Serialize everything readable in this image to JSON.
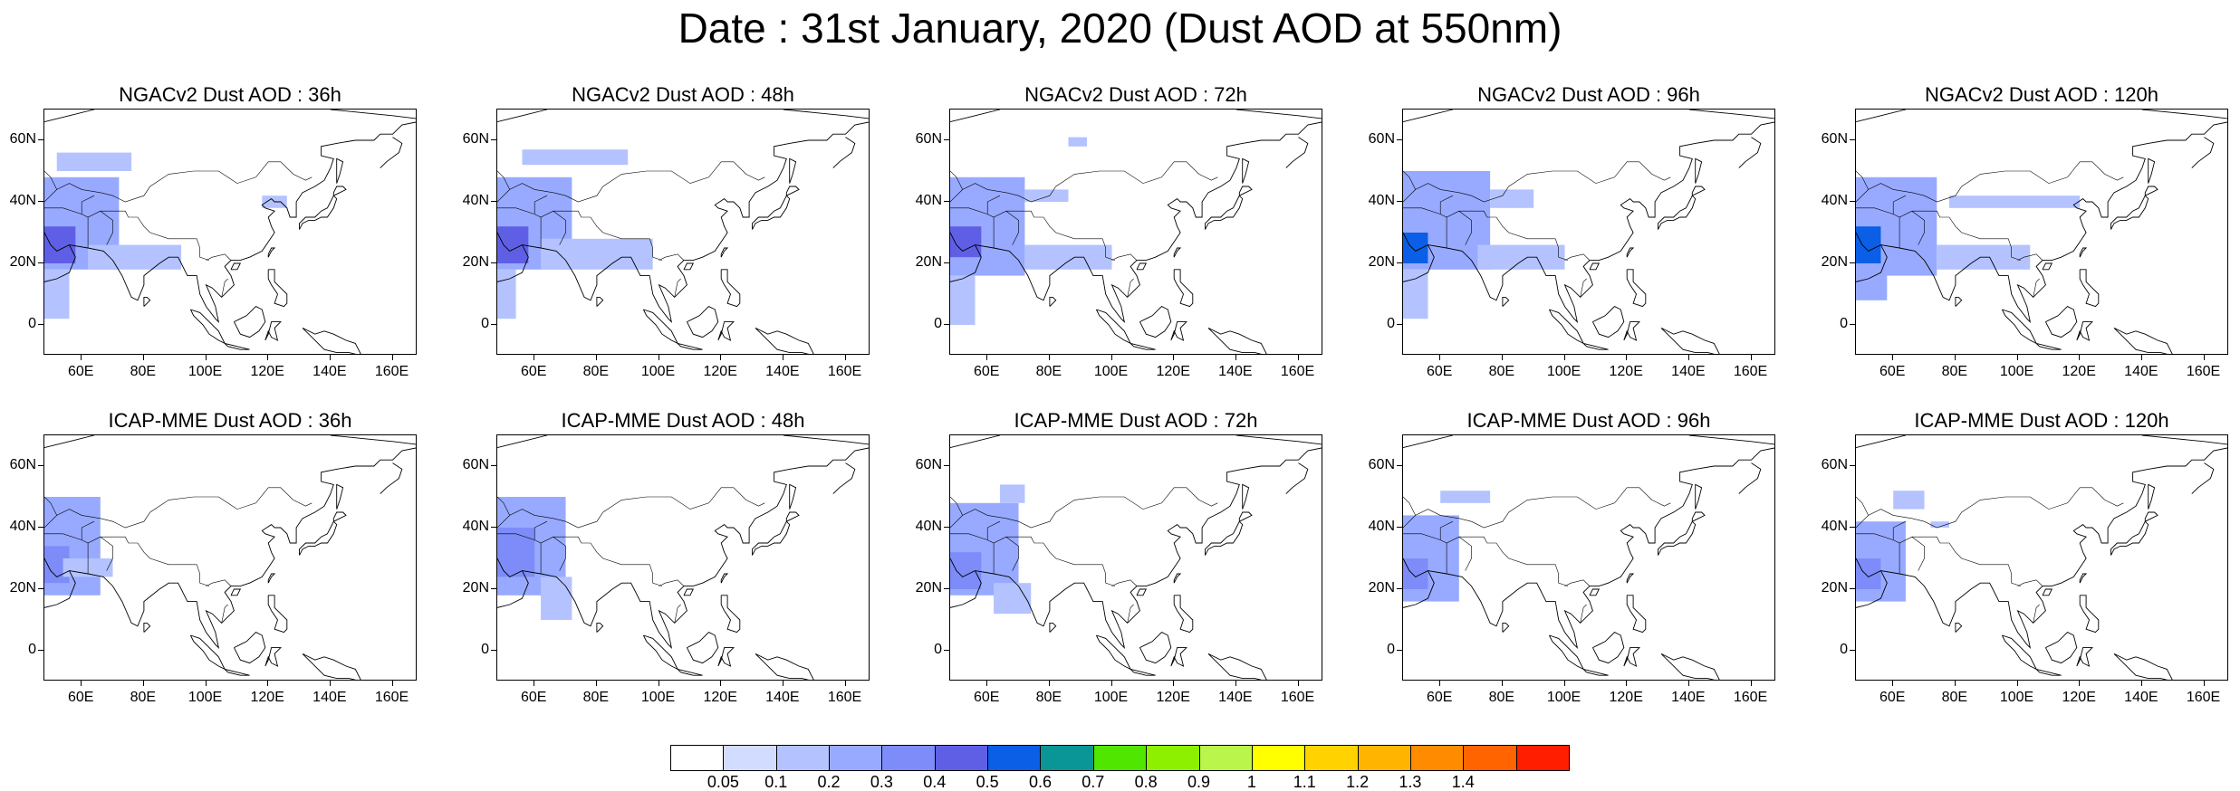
{
  "title": "Date : 31st January, 2020 (Dust AOD at 550nm)",
  "map": {
    "lon_range": [
      48,
      168
    ],
    "lat_range": [
      -10,
      70
    ],
    "x_ticks": [
      "60E",
      "80E",
      "100E",
      "120E",
      "140E",
      "160E"
    ],
    "x_tick_values": [
      60,
      80,
      100,
      120,
      140,
      160
    ],
    "y_ticks": [
      "0",
      "20N",
      "40N",
      "60N"
    ],
    "y_tick_values": [
      0,
      20,
      40,
      60
    ]
  },
  "panels": [
    {
      "title": "NGACv2 Dust AOD : 36h",
      "model": "NGACv2",
      "lead": "36h",
      "dust": [
        {
          "lon": [
            48,
            72
          ],
          "lat": [
            18,
            48
          ],
          "aod": 0.2
        },
        {
          "lon": [
            48,
            58
          ],
          "lat": [
            20,
            32
          ],
          "aod": 0.4
        },
        {
          "lon": [
            52,
            76
          ],
          "lat": [
            50,
            56
          ],
          "aod": 0.1
        },
        {
          "lon": [
            62,
            92
          ],
          "lat": [
            18,
            26
          ],
          "aod": 0.1
        },
        {
          "lon": [
            48,
            56
          ],
          "lat": [
            2,
            18
          ],
          "aod": 0.1
        },
        {
          "lon": [
            118,
            126
          ],
          "lat": [
            38,
            42
          ],
          "aod": 0.1
        }
      ]
    },
    {
      "title": "NGACv2 Dust AOD : 48h",
      "model": "NGACv2",
      "lead": "48h",
      "dust": [
        {
          "lon": [
            48,
            72
          ],
          "lat": [
            18,
            48
          ],
          "aod": 0.2
        },
        {
          "lon": [
            48,
            58
          ],
          "lat": [
            20,
            32
          ],
          "aod": 0.4
        },
        {
          "lon": [
            56,
            90
          ],
          "lat": [
            52,
            57
          ],
          "aod": 0.1
        },
        {
          "lon": [
            62,
            98
          ],
          "lat": [
            18,
            28
          ],
          "aod": 0.1
        },
        {
          "lon": [
            48,
            54
          ],
          "lat": [
            2,
            18
          ],
          "aod": 0.1
        }
      ]
    },
    {
      "title": "NGACv2 Dust AOD : 72h",
      "model": "NGACv2",
      "lead": "72h",
      "dust": [
        {
          "lon": [
            48,
            72
          ],
          "lat": [
            16,
            48
          ],
          "aod": 0.2
        },
        {
          "lon": [
            48,
            58
          ],
          "lat": [
            22,
            32
          ],
          "aod": 0.4
        },
        {
          "lon": [
            72,
            100
          ],
          "lat": [
            18,
            26
          ],
          "aod": 0.1
        },
        {
          "lon": [
            48,
            56
          ],
          "lat": [
            0,
            16
          ],
          "aod": 0.1
        },
        {
          "lon": [
            86,
            92
          ],
          "lat": [
            58,
            61
          ],
          "aod": 0.1
        },
        {
          "lon": [
            72,
            86
          ],
          "lat": [
            40,
            44
          ],
          "aod": 0.1
        }
      ]
    },
    {
      "title": "NGACv2 Dust AOD : 96h",
      "model": "NGACv2",
      "lead": "96h",
      "dust": [
        {
          "lon": [
            48,
            76
          ],
          "lat": [
            18,
            50
          ],
          "aod": 0.2
        },
        {
          "lon": [
            48,
            56
          ],
          "lat": [
            20,
            30
          ],
          "aod": 0.5
        },
        {
          "lon": [
            72,
            100
          ],
          "lat": [
            18,
            26
          ],
          "aod": 0.1
        },
        {
          "lon": [
            48,
            56
          ],
          "lat": [
            2,
            18
          ],
          "aod": 0.1
        },
        {
          "lon": [
            76,
            90
          ],
          "lat": [
            38,
            44
          ],
          "aod": 0.1
        }
      ]
    },
    {
      "title": "NGACv2 Dust AOD : 120h",
      "model": "NGACv2",
      "lead": "120h",
      "dust": [
        {
          "lon": [
            48,
            74
          ],
          "lat": [
            16,
            48
          ],
          "aod": 0.2
        },
        {
          "lon": [
            48,
            56
          ],
          "lat": [
            20,
            32
          ],
          "aod": 0.5
        },
        {
          "lon": [
            74,
            104
          ],
          "lat": [
            18,
            26
          ],
          "aod": 0.1
        },
        {
          "lon": [
            48,
            58
          ],
          "lat": [
            8,
            18
          ],
          "aod": 0.2
        },
        {
          "lon": [
            78,
            120
          ],
          "lat": [
            38,
            42
          ],
          "aod": 0.1
        }
      ]
    },
    {
      "title": "ICAP-MME Dust AOD : 36h",
      "model": "ICAP-MME",
      "lead": "36h",
      "dust": [
        {
          "lon": [
            48,
            66
          ],
          "lat": [
            18,
            50
          ],
          "aod": 0.2
        },
        {
          "lon": [
            48,
            56
          ],
          "lat": [
            22,
            34
          ],
          "aod": 0.3
        },
        {
          "lon": [
            54,
            70
          ],
          "lat": [
            24,
            30
          ],
          "aod": 0.1
        }
      ]
    },
    {
      "title": "ICAP-MME Dust AOD : 48h",
      "model": "ICAP-MME",
      "lead": "48h",
      "dust": [
        {
          "lon": [
            48,
            70
          ],
          "lat": [
            18,
            50
          ],
          "aod": 0.2
        },
        {
          "lon": [
            48,
            60
          ],
          "lat": [
            24,
            40
          ],
          "aod": 0.3
        },
        {
          "lon": [
            62,
            72
          ],
          "lat": [
            10,
            24
          ],
          "aod": 0.1
        }
      ]
    },
    {
      "title": "ICAP-MME Dust AOD : 72h",
      "model": "ICAP-MME",
      "lead": "72h",
      "dust": [
        {
          "lon": [
            48,
            70
          ],
          "lat": [
            18,
            48
          ],
          "aod": 0.2
        },
        {
          "lon": [
            48,
            58
          ],
          "lat": [
            20,
            32
          ],
          "aod": 0.3
        },
        {
          "lon": [
            64,
            72
          ],
          "lat": [
            48,
            54
          ],
          "aod": 0.1
        },
        {
          "lon": [
            62,
            74
          ],
          "lat": [
            12,
            22
          ],
          "aod": 0.1
        }
      ]
    },
    {
      "title": "ICAP-MME Dust AOD : 96h",
      "model": "ICAP-MME",
      "lead": "96h",
      "dust": [
        {
          "lon": [
            48,
            66
          ],
          "lat": [
            16,
            44
          ],
          "aod": 0.2
        },
        {
          "lon": [
            48,
            56
          ],
          "lat": [
            20,
            30
          ],
          "aod": 0.3
        },
        {
          "lon": [
            60,
            76
          ],
          "lat": [
            48,
            52
          ],
          "aod": 0.1
        }
      ]
    },
    {
      "title": "ICAP-MME Dust AOD : 120h",
      "model": "ICAP-MME",
      "lead": "120h",
      "dust": [
        {
          "lon": [
            48,
            64
          ],
          "lat": [
            16,
            42
          ],
          "aod": 0.2
        },
        {
          "lon": [
            48,
            56
          ],
          "lat": [
            20,
            30
          ],
          "aod": 0.3
        },
        {
          "lon": [
            60,
            70
          ],
          "lat": [
            46,
            52
          ],
          "aod": 0.1
        },
        {
          "lon": [
            72,
            78
          ],
          "lat": [
            40,
            42
          ],
          "aod": 0.1
        }
      ]
    }
  ],
  "colorbar": {
    "labels": [
      "0.05",
      "0.1",
      "0.2",
      "0.3",
      "0.4",
      "0.5",
      "0.6",
      "0.7",
      "0.8",
      "0.9",
      "1",
      "1.1",
      "1.2",
      "1.3",
      "1.4"
    ],
    "colors": [
      "#ffffff",
      "#d2dcff",
      "#b4c3ff",
      "#98aaff",
      "#7d8cf8",
      "#5f5fe6",
      "#0a5fe6",
      "#0a9696",
      "#50e600",
      "#8cf000",
      "#b9f54b",
      "#ffff00",
      "#ffd200",
      "#ffb400",
      "#ff8c00",
      "#ff6400",
      "#ff1e00"
    ]
  }
}
